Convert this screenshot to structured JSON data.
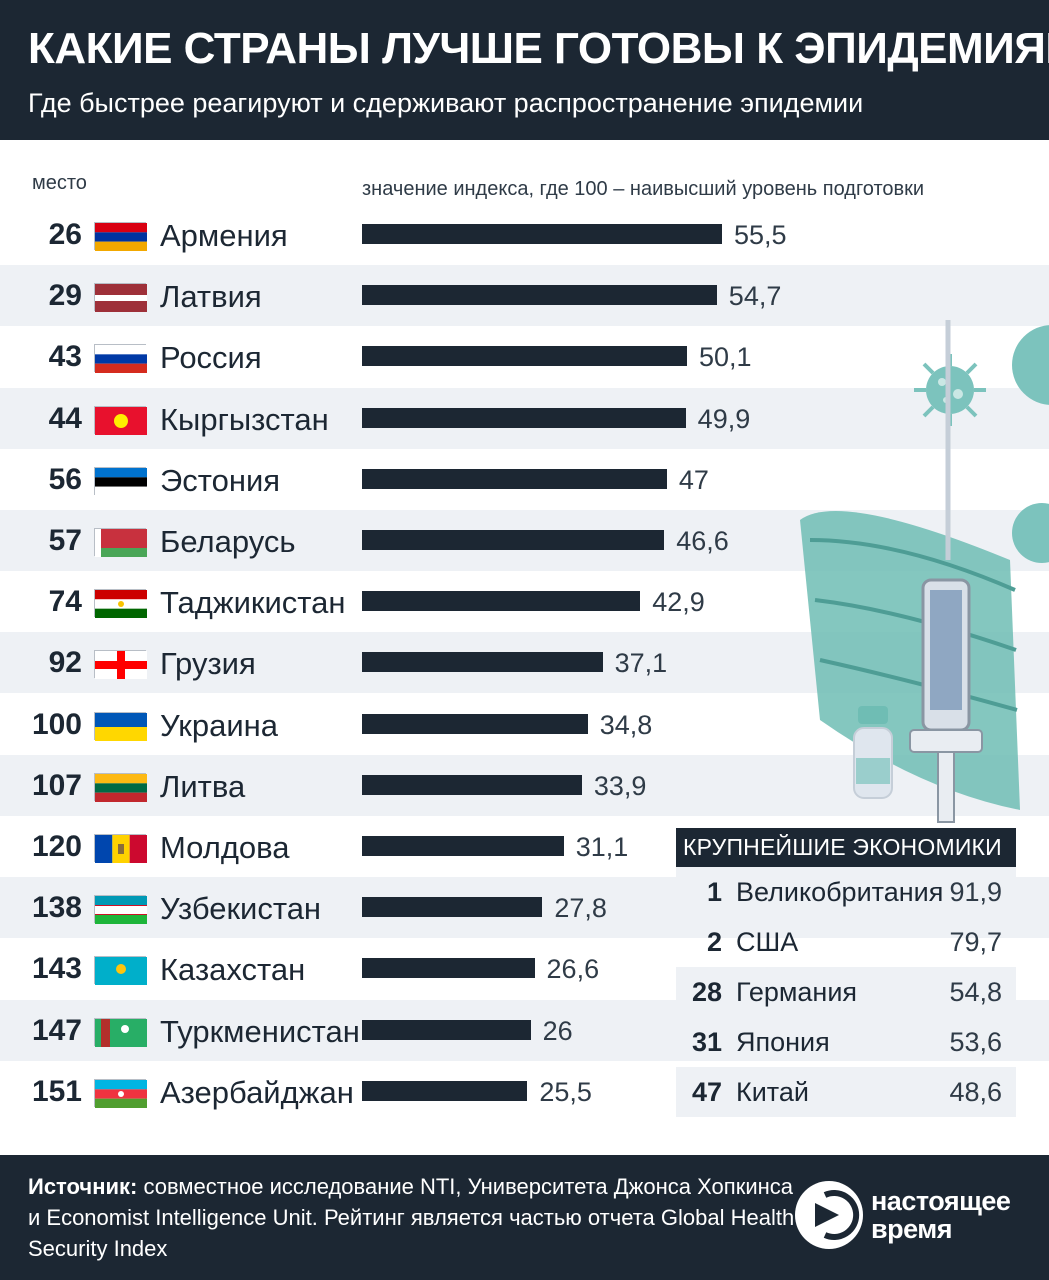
{
  "header": {
    "title": "КАКИЕ СТРАНЫ ЛУЧШЕ ГОТОВЫ К ЭПИДЕМИЯМ",
    "subtitle": "Где быстрее реагируют и сдерживают распространение эпидемии"
  },
  "labels": {
    "rank_label": "место",
    "index_label": "значение индекса,  где 100 – наивысший уровень подготовки"
  },
  "chart_data": {
    "type": "bar",
    "title": "КАКИЕ СТРАНЫ ЛУЧШЕ ГОТОВЫ К ЭПИДЕМИЯМ",
    "subtitle": "Где быстрее реагируют и сдерживают распространение эпидемии",
    "xlabel": "значение индекса,  где 100 – наивысший уровень подготовки",
    "ylabel": "место",
    "xlim": [
      0,
      100
    ],
    "orientation": "horizontal",
    "categories": [
      "Армения",
      "Латвия",
      "Россия",
      "Кыргызстан",
      "Эстония",
      "Беларусь",
      "Таджикистан",
      "Грузия",
      "Украина",
      "Литва",
      "Молдова",
      "Узбекистан",
      "Казахстан",
      "Туркменистан",
      "Азербайджан"
    ],
    "ranks": [
      "26",
      "29",
      "43",
      "44",
      "56",
      "57",
      "74",
      "92",
      "100",
      "107",
      "120",
      "138",
      "143",
      "147",
      "151"
    ],
    "values": [
      55.5,
      54.7,
      50.1,
      49.9,
      47,
      46.6,
      42.9,
      37.1,
      34.8,
      33.9,
      31.1,
      27.8,
      26.6,
      26,
      25.5
    ],
    "value_labels": [
      "55,5",
      "54,7",
      "50,1",
      "49,9",
      "47",
      "46,6",
      "42,9",
      "37,1",
      "34,8",
      "33,9",
      "31,1",
      "27,8",
      "26,6",
      "26",
      "25,5"
    ],
    "bar_color": "#1c2733"
  },
  "rows": [
    {
      "rank": "26",
      "country": "Армения",
      "flag": "flag-armenia"
    },
    {
      "rank": "29",
      "country": "Латвия",
      "flag": "flag-latvia"
    },
    {
      "rank": "43",
      "country": "Россия",
      "flag": "flag-russia"
    },
    {
      "rank": "44",
      "country": "Кыргызстан",
      "flag": "flag-kyrgyzstan"
    },
    {
      "rank": "56",
      "country": "Эстония",
      "flag": "flag-estonia"
    },
    {
      "rank": "57",
      "country": "Беларусь",
      "flag": "flag-belarus"
    },
    {
      "rank": "74",
      "country": "Таджикистан",
      "flag": "flag-tajikistan"
    },
    {
      "rank": "92",
      "country": "Грузия",
      "flag": "flag-georgia"
    },
    {
      "rank": "100",
      "country": "Украина",
      "flag": "flag-ukraine"
    },
    {
      "rank": "107",
      "country": "Литва",
      "flag": "flag-lithuania"
    },
    {
      "rank": "120",
      "country": "Молдова",
      "flag": "flag-moldova"
    },
    {
      "rank": "138",
      "country": "Узбекистан",
      "flag": "flag-uzbekistan"
    },
    {
      "rank": "143",
      "country": "Казахстан",
      "flag": "flag-kazakhstan"
    },
    {
      "rank": "147",
      "country": "Туркменистан",
      "flag": "flag-turkmenistan"
    },
    {
      "rank": "151",
      "country": "Азербайджан",
      "flag": "flag-azerbaijan"
    }
  ],
  "economies": {
    "heading": "КРУПНЕЙШИЕ ЭКОНОМИКИ",
    "items": [
      {
        "rank": "1",
        "name": "Великобритания",
        "value": "91,9"
      },
      {
        "rank": "2",
        "name": "США",
        "value": "79,7"
      },
      {
        "rank": "28",
        "name": "Германия",
        "value": "54,8"
      },
      {
        "rank": "31",
        "name": "Япония",
        "value": "53,6"
      },
      {
        "rank": "47",
        "name": "Китай",
        "value": "48,6"
      }
    ]
  },
  "footer": {
    "source_label": "Источник:",
    "source_text": " совместное исследование NTI, Университета Джонса Хопкинса и Economist Intelligence Unit. Рейтинг является частью отчета Global Health Security Index",
    "logo_line1": "настоящее",
    "logo_line2": "время"
  },
  "colors": {
    "dark": "#1c2733",
    "stripe": "#eef1f5",
    "teal": "#5fb3ad"
  }
}
